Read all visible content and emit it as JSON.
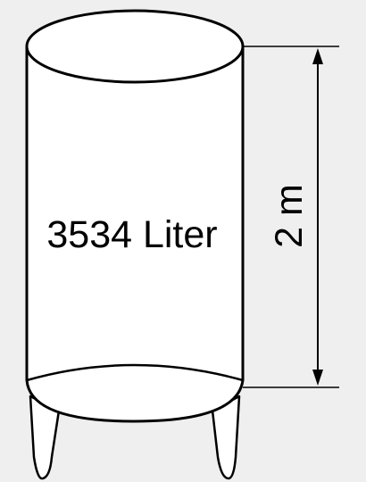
{
  "tank": {
    "volume_label": "3534 Liter",
    "height_label": "2 m"
  },
  "colors": {
    "background": "#efefef",
    "tank_fill": "#ffffff",
    "outline": "#000000"
  },
  "icons": {
    "height_arrow": "double-headed-vertical-arrow"
  }
}
